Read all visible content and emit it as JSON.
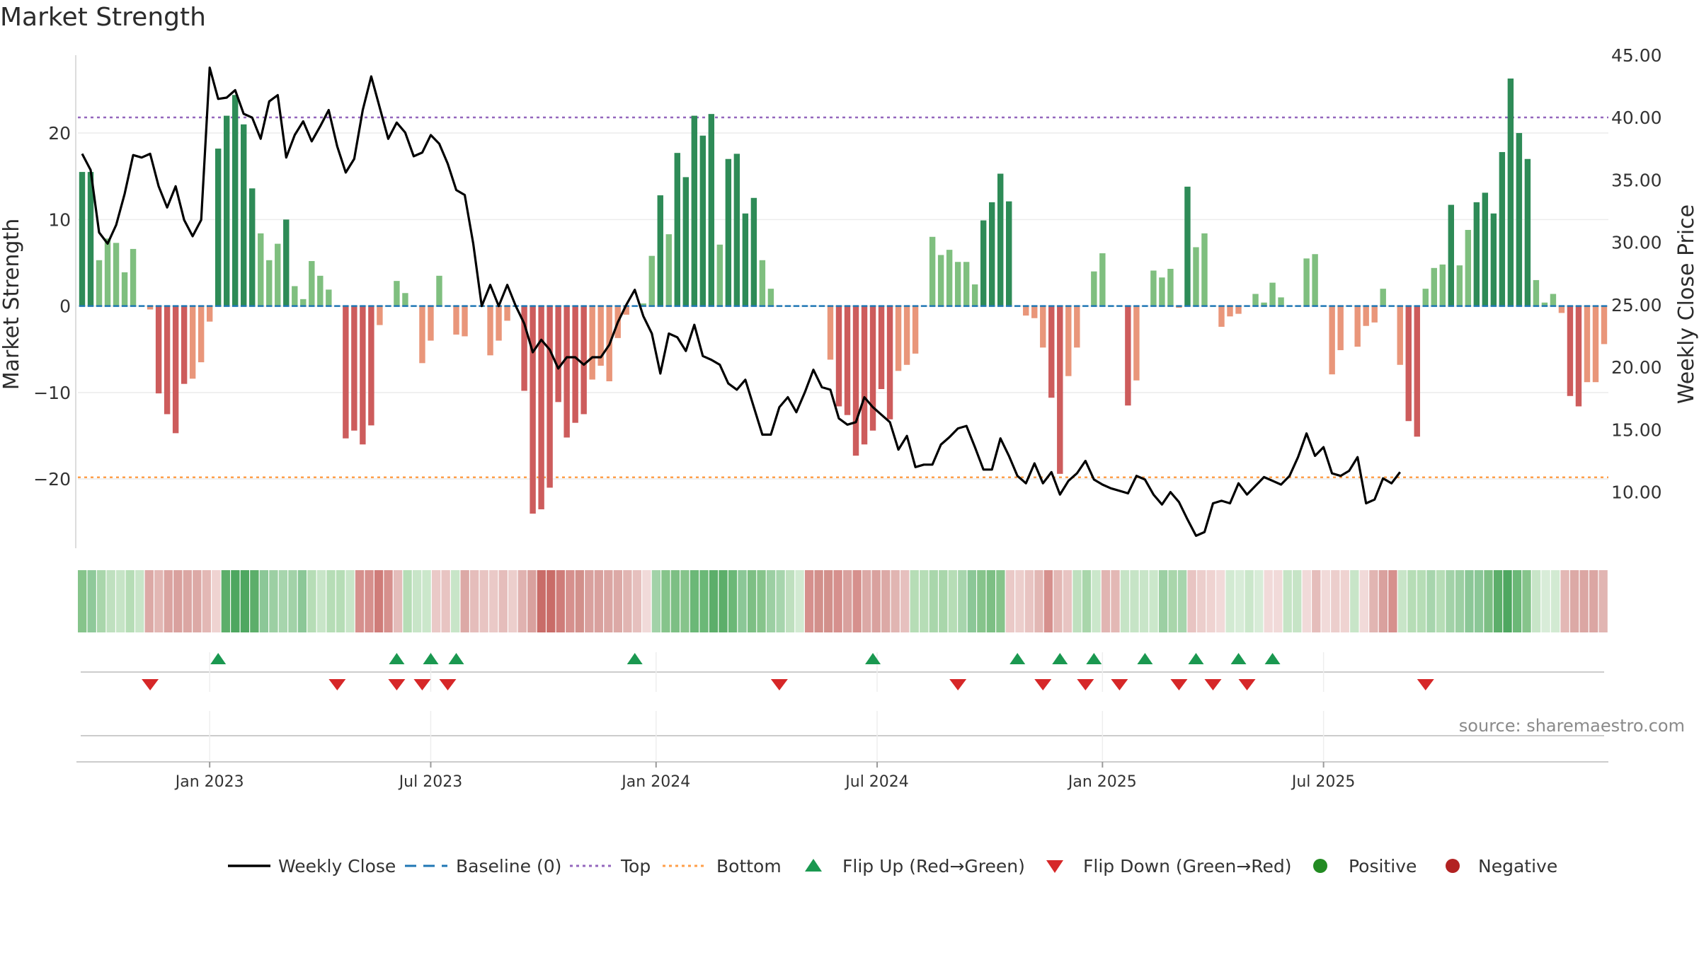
{
  "title": "Market Strength",
  "source": "source: sharemaestro.com",
  "colors": {
    "strong_green": "#2e8b57",
    "light_green": "#7fbf7f",
    "strong_red": "#cd5c5c",
    "light_red": "#e9967a",
    "line": "#000000",
    "baseline": "#1f77b4",
    "top": "#9467bd",
    "bottom": "#ff9f4a",
    "flip_up": "#1a9850",
    "flip_down": "#d62728",
    "positive": "#228b22",
    "negative": "#b22222",
    "grid": "#ececec"
  },
  "chart_data": {
    "type": "bar",
    "title": "Market Strength",
    "ylabel_left": "Market Strength",
    "ylabel_right": "Weekly Close Price",
    "ylim_left": [
      -28,
      29
    ],
    "ylim_right": [
      5.5,
      45
    ],
    "yticks_left": [
      "20",
      "10",
      "0",
      "−10",
      "−20"
    ],
    "yticks_left_values": [
      20,
      10,
      0,
      -10,
      -20
    ],
    "yticks_right": [
      "45.00",
      "40.00",
      "35.00",
      "30.00",
      "25.00",
      "20.00",
      "15.00",
      "10.00"
    ],
    "yticks_right_values": [
      45,
      40,
      35,
      30,
      25,
      20,
      15,
      10
    ],
    "xtick_labels": [
      "Jan 2023",
      "Jul 2023",
      "Jan 2024",
      "Jul 2024",
      "Jan 2025",
      "Jul 2025"
    ],
    "xtick_index": [
      15,
      41,
      67.5,
      93.5,
      120,
      146
    ],
    "top_level": 21.8,
    "bottom_level": -19.8,
    "grid": true,
    "legend_position": "bottom",
    "legend": [
      {
        "label": "Weekly Close",
        "kind": "line"
      },
      {
        "label": "Baseline (0)",
        "kind": "dash"
      },
      {
        "label": "Top",
        "kind": "dot-purple"
      },
      {
        "label": "Bottom",
        "kind": "dot-orange"
      },
      {
        "label": "Flip Up (Red→Green)",
        "kind": "tri-up"
      },
      {
        "label": "Flip Down (Green→Red)",
        "kind": "tri-down"
      },
      {
        "label": "Positive",
        "kind": "dot-green"
      },
      {
        "label": "Negative",
        "kind": "dot-red"
      }
    ],
    "strength": [
      15.5,
      15.5,
      5.3,
      7.8,
      7.3,
      3.9,
      6.6,
      0,
      -0.4,
      -10.1,
      -12.5,
      -14.7,
      -9.0,
      -8.4,
      -6.5,
      -1.8,
      18.2,
      22.0,
      24.4,
      21.0,
      13.6,
      8.4,
      5.3,
      7.2,
      10.0,
      2.3,
      0.8,
      5.2,
      3.5,
      1.9,
      0,
      -15.3,
      -14.4,
      -16.0,
      -13.8,
      -2.2,
      0,
      2.9,
      1.5,
      0,
      -6.6,
      -4.0,
      3.5,
      0,
      -3.3,
      -3.5,
      0,
      0,
      -5.7,
      -4.0,
      -1.7,
      0,
      -9.8,
      -24.0,
      -23.5,
      -21.0,
      -11.1,
      -15.2,
      -13.5,
      -12.5,
      -8.5,
      -6.9,
      -8.7,
      -3.7,
      -1.0,
      0,
      0.3,
      5.8,
      12.8,
      8.3,
      17.7,
      14.9,
      22.0,
      19.7,
      22.2,
      7.1,
      17.0,
      17.6,
      10.7,
      12.5,
      5.3,
      2.0,
      0,
      0,
      0,
      0,
      0,
      0,
      -6.2,
      -11.6,
      -12.6,
      -17.3,
      -16.0,
      -14.4,
      -9.6,
      -13.1,
      -7.5,
      -6.8,
      -5.5,
      0,
      8.0,
      5.9,
      6.5,
      5.1,
      5.1,
      2.5,
      9.9,
      12.0,
      15.3,
      12.1,
      0,
      -1.1,
      -1.4,
      -4.8,
      -10.6,
      -19.4,
      -8.1,
      -4.8,
      0,
      4.0,
      6.1,
      0,
      0,
      -11.5,
      -8.6,
      0,
      4.1,
      3.3,
      4.3,
      -0.2,
      13.8,
      6.8,
      8.4,
      0,
      -2.4,
      -1.2,
      -0.9,
      0,
      1.4,
      0.4,
      2.7,
      1.0,
      0,
      0,
      5.5,
      6.0,
      0,
      -7.9,
      -5.1,
      0,
      -4.7,
      -2.3,
      -1.9,
      2.0,
      0,
      -6.8,
      -13.3,
      -15.1,
      2.0,
      4.4,
      4.8,
      11.7,
      4.7,
      8.8,
      12.0,
      13.1,
      10.7,
      17.8,
      26.3,
      20.0,
      17.0,
      3.0,
      0.4,
      1.4,
      -0.8,
      -10.4,
      -11.6,
      -8.8,
      -8.8,
      -4.4
    ],
    "weekly_close": [
      37.1,
      35.8,
      30.8,
      29.9,
      31.4,
      33.9,
      37.0,
      36.8,
      37.1,
      34.5,
      32.8,
      34.5,
      31.8,
      30.5,
      31.8,
      44.0,
      41.5,
      41.6,
      42.2,
      40.3,
      40.0,
      38.3,
      41.3,
      41.8,
      36.8,
      38.6,
      39.7,
      38.1,
      39.3,
      40.6,
      37.7,
      35.6,
      36.7,
      40.6,
      43.3,
      40.8,
      38.3,
      39.6,
      38.8,
      36.9,
      37.2,
      38.6,
      37.9,
      36.3,
      34.2,
      33.8,
      29.9,
      24.9,
      26.6,
      24.9,
      26.6,
      24.9,
      23.5,
      21.2,
      22.2,
      21.4,
      19.9,
      20.8,
      20.8,
      20.2,
      20.8,
      20.8,
      21.8,
      23.6,
      25.0,
      26.2,
      24.1,
      22.7,
      19.5,
      22.7,
      22.4,
      21.3,
      23.4,
      20.9,
      20.6,
      20.2,
      18.7,
      18.2,
      19.0,
      16.8,
      14.6,
      14.6,
      16.8,
      17.6,
      16.4,
      18.0,
      19.8,
      18.4,
      18.2,
      15.9,
      15.4,
      15.6,
      17.6,
      16.8,
      16.2,
      15.6,
      13.4,
      14.5,
      12.0,
      12.2,
      12.2,
      13.8,
      14.4,
      15.1,
      15.3,
      13.6,
      11.8,
      11.8,
      14.3,
      12.9,
      11.3,
      10.7,
      12.3,
      10.7,
      11.6,
      9.8,
      10.9,
      11.5,
      12.5,
      11.0,
      10.6,
      10.3,
      10.1,
      9.9,
      11.3,
      11.0,
      9.8,
      9.0,
      10.0,
      9.2,
      7.8,
      6.5,
      6.8,
      9.1,
      9.3,
      9.1,
      10.7,
      9.8,
      10.5,
      11.2,
      10.9,
      10.6,
      11.3,
      12.8,
      14.7,
      12.9,
      13.6,
      11.5,
      11.3,
      11.7,
      12.8,
      9.1,
      9.4,
      11.1,
      10.7,
      11.6
    ],
    "flip_up": [
      16,
      37,
      41,
      44,
      65,
      93,
      110,
      115,
      119,
      125,
      131,
      136,
      140
    ],
    "flip_down": [
      8,
      30,
      37,
      40,
      43,
      82,
      103,
      113,
      118,
      122,
      129,
      133,
      137,
      158
    ],
    "strip": [
      [
        "#86c48b",
        "#8fc99a",
        "#a9d6ab",
        "#bfe0bf",
        "#c6e4c6",
        "#b6ddb6",
        "#c8e5c8",
        "#dca9a6",
        "#e2b7b4",
        "#dba4a1",
        "#d9a19e",
        "#dba6a3",
        "#dca9a6",
        "#e3b8b5",
        "#efd3d1"
      ],
      [
        "#5cae6a",
        "#4ea760",
        "#4ea760",
        "#5cae6a",
        "#8bc797",
        "#9ccfa3",
        "#a7d5ad",
        "#a2d2a8",
        "#8bc797",
        "#b6ddb6",
        "#c8e5c8",
        "#b6ddb6",
        "#b6ddb6",
        "#c8e5c8"
      ],
      [
        "#d6908d",
        "#d6908d",
        "#cf7c79",
        "#d6908d",
        "#e4bcba",
        "#b6ddb6",
        "#c8e5c8",
        "#cbe7cb",
        "#eac9c7",
        "#e8c4c2",
        "#c8e5c8",
        "#dca9a6",
        "#e5bdbb",
        "#e8c4c2",
        "#eac9c7",
        "#e5bdbb",
        "#eccecc",
        "#e0b2b0",
        "#d9a19e",
        "#c96c68",
        "#c96c68",
        "#cf7c79",
        "#d6908d",
        "#d2908b",
        "#d9a19e",
        "#d9a19e",
        "#dba6a3",
        "#dca9a6",
        "#e1b5b2",
        "#e6c0be",
        "#f1dad9"
      ],
      [
        "#a2d2a8",
        "#86c48b",
        "#7dbf84",
        "#86c48b",
        "#6bb877",
        "#6bb877",
        "#5cae6a",
        "#5cae6a",
        "#6bb877",
        "#8bc797",
        "#7dbf84",
        "#86c48b",
        "#9ccfa3",
        "#a7d5ad",
        "#bfe0bf",
        "#d2ead2"
      ],
      [
        "#d6908d",
        "#d2908b",
        "#d2908b",
        "#d6908d",
        "#d9a19e",
        "#d6908d",
        "#dca9a6",
        "#d9a19e",
        "#dca9a6",
        "#e1b5b2",
        "#e6c0be"
      ],
      [
        "#b6ddb6",
        "#b6ddb6",
        "#a9d6ab",
        "#a9d6ab",
        "#b6ddb6",
        "#a7d5ad",
        "#8bc797",
        "#86c48b",
        "#7dbf84",
        "#86c48b",
        "#eac9c7",
        "#eccecc",
        "#e8c4c2",
        "#e2b7b4",
        "#d6908d",
        "#e3b8b5",
        "#e8c4c2"
      ],
      [
        "#bfe0bf",
        "#a9d6ab",
        "#cbe7cb",
        "#e1b5b2",
        "#e3b8b5",
        "#c6e4c6",
        "#c6e4c6",
        "#c8e5c8",
        "#cbe7cb",
        "#9ccfa3",
        "#a9d6ab",
        "#a7d5ad",
        "#e8c4c2",
        "#eccecc",
        "#efd3d1",
        "#f1dad9",
        "#d2ead2",
        "#d8ecd8",
        "#cbe7cb",
        "#d8ecd8",
        "#f1dad9",
        "#f1dad9",
        "#c6e4c6",
        "#c6e4c6",
        "#f1dad9",
        "#e5bdbb",
        "#f1dad9",
        "#eccecc",
        "#efd3d1",
        "#c8e5c8",
        "#f1dad9",
        "#e1b5b2",
        "#d9a19e",
        "#d6908d"
      ],
      [
        "#c8e5c8",
        "#b6ddb6",
        "#b6ddb6",
        "#a7d5ad",
        "#b6ddb6",
        "#a2d2a8",
        "#9ccfa3",
        "#8bc797",
        "#8bc797",
        "#7dbf84",
        "#5cae6a",
        "#4ea760",
        "#6bb877",
        "#86c48b",
        "#c8e5c8",
        "#d8ecd8",
        "#d2ead2",
        "#e3b8b5",
        "#dca9a6",
        "#dba6a3",
        "#dba6a3",
        "#e1b5b2"
      ]
    ],
    "x_axis_caption": ""
  }
}
